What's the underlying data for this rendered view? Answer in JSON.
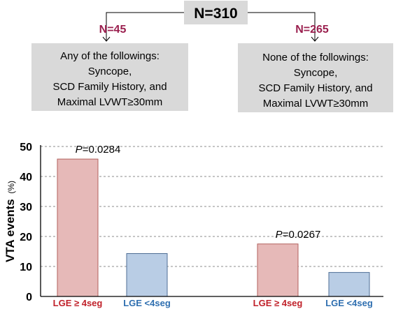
{
  "flow": {
    "root": "N=310",
    "left": {
      "count": "N=45",
      "lines": [
        "Any of the followings:",
        "Syncope,",
        "SCD Family History, and",
        "Maximal LVWT≥30mm"
      ]
    },
    "right": {
      "count": "N=265",
      "lines": [
        "None of the followings:",
        "Syncope,",
        "SCD Family History, and",
        "Maximal LVWT≥30mm"
      ]
    }
  },
  "colors": {
    "count_text": "#9a1f4e",
    "box_fill": "#d9d9d9",
    "bar_lge_high": "#e6b9b8",
    "bar_lge_high_stroke": "#b2605c",
    "bar_lge_low": "#b9cde5",
    "bar_lge_low_stroke": "#4f6e96",
    "label_lge_high": "#c0212a",
    "label_lge_low": "#2f6fb0"
  },
  "chart_data": {
    "type": "bar",
    "ylabel": "VTA events",
    "ylabel_unit": "(%)",
    "ylim": [
      0,
      50
    ],
    "yticks": [
      "0",
      "10",
      "20",
      "30",
      "40",
      "50"
    ],
    "grid": "horizontal dashed",
    "groups": [
      {
        "p_prefix": "P",
        "p_value": "=0.0284",
        "bars": [
          {
            "label": "LGE ≥ 4seg",
            "value": 45.8
          },
          {
            "label": "LGE <4seg",
            "value": 14.3
          }
        ]
      },
      {
        "p_prefix": "P",
        "p_value": "=0.0267",
        "bars": [
          {
            "label": "LGE ≥ 4seg",
            "value": 17.5
          },
          {
            "label": "LGE <4seg",
            "value": 8.0
          }
        ]
      }
    ]
  }
}
